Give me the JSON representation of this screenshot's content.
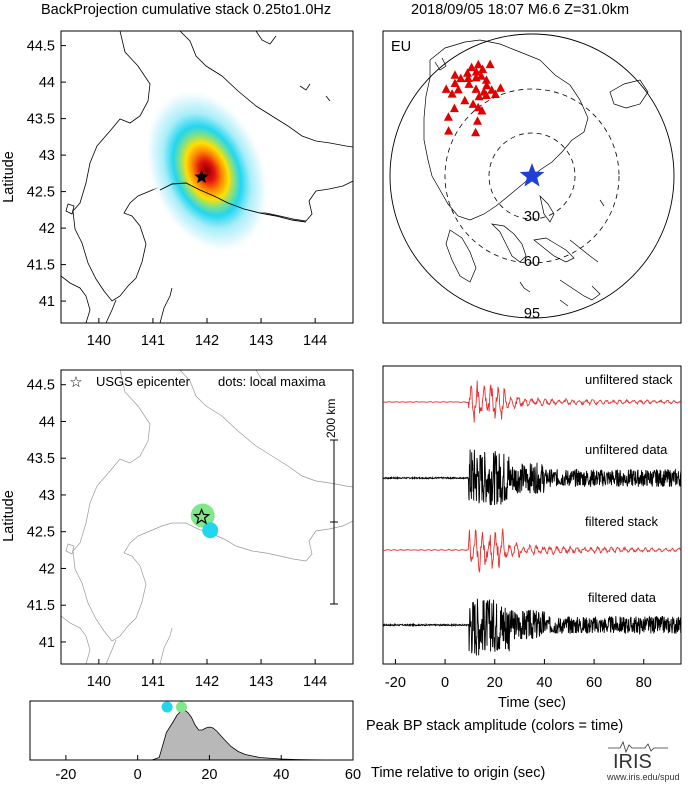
{
  "header": {
    "left_title": "BackProjection cumulative stack 0.25to1.0Hz",
    "right_title": "2018/09/05 18:07   M6.6  Z=31.0km"
  },
  "colors": {
    "stack_trace": "#e53030",
    "data_trace": "#000000",
    "station_marker": "#e00000",
    "epicenter_marker": "#1f3fd8",
    "early_dot": "#22d6f0",
    "late_dot": "#7ee88a",
    "amplitude_fill": "#b8b8b8"
  },
  "chart_data": [
    {
      "type": "heatmap",
      "xlabel": "",
      "ylabel": "Latitude",
      "xlim": [
        139.3,
        144.7
      ],
      "ylim": [
        40.7,
        44.7
      ],
      "x_ticks": [
        "140",
        "141",
        "142",
        "143",
        "144"
      ],
      "y_ticks": [
        "41",
        "41.5",
        "42",
        "42.5",
        "43",
        "43.5",
        "44",
        "44.5"
      ],
      "peak": {
        "lon": 141.92,
        "lat": 42.72
      },
      "epicenter": {
        "lon": 141.9,
        "lat": 42.7,
        "marker": "star"
      }
    },
    {
      "type": "scatter",
      "label": "EU",
      "ring_labels": [
        "30",
        "60",
        "95"
      ],
      "epicenter_marker": "star",
      "station_marker": "triangle",
      "stations": [
        {
          "lon": 4,
          "lat": 52
        },
        {
          "lon": 8,
          "lat": 50
        },
        {
          "lon": 10,
          "lat": 54
        },
        {
          "lon": 13,
          "lat": 52
        },
        {
          "lon": 15,
          "lat": 48
        },
        {
          "lon": 20,
          "lat": 50
        },
        {
          "lon": 24,
          "lat": 55
        },
        {
          "lon": 26,
          "lat": 60
        },
        {
          "lon": 30,
          "lat": 62
        },
        {
          "lon": 22,
          "lat": 64
        },
        {
          "lon": 18,
          "lat": 60
        },
        {
          "lon": 12,
          "lat": 58
        },
        {
          "lon": 6,
          "lat": 46
        },
        {
          "lon": 2,
          "lat": 48
        },
        {
          "lon": -3,
          "lat": 53
        },
        {
          "lon": 25,
          "lat": 45
        },
        {
          "lon": 28,
          "lat": 42
        },
        {
          "lon": 35,
          "lat": 50
        },
        {
          "lon": 40,
          "lat": 55
        },
        {
          "lon": 45,
          "lat": 58
        },
        {
          "lon": 50,
          "lat": 60
        },
        {
          "lon": 16,
          "lat": 44
        },
        {
          "lon": 11,
          "lat": 46
        },
        {
          "lon": 20,
          "lat": 42
        },
        {
          "lon": 32,
          "lat": 58
        },
        {
          "lon": 27,
          "lat": 67
        },
        {
          "lon": 15,
          "lat": 68
        },
        {
          "lon": 60,
          "lat": 56
        },
        {
          "lon": 70,
          "lat": 52
        },
        {
          "lon": 40,
          "lat": 44
        },
        {
          "lon": 45,
          "lat": 40
        },
        {
          "lon": 55,
          "lat": 38
        },
        {
          "lon": 24,
          "lat": 38
        },
        {
          "lon": 14,
          "lat": 40
        }
      ]
    },
    {
      "type": "scatter",
      "xlabel": "",
      "ylabel": "Latitude",
      "xlim": [
        139.3,
        144.7
      ],
      "ylim": [
        40.7,
        44.7
      ],
      "x_ticks": [
        "140",
        "141",
        "142",
        "143",
        "144"
      ],
      "y_ticks": [
        "41",
        "41.5",
        "42",
        "42.5",
        "43",
        "43.5",
        "44",
        "44.5"
      ],
      "legend": "USGS epicenter",
      "note": "dots: local maxima",
      "scale_bar": "200 km",
      "epicenter": {
        "lon": 141.9,
        "lat": 42.7
      },
      "points": [
        {
          "lon": 141.92,
          "lat": 42.72,
          "color": "#7ee88a",
          "size": 12
        },
        {
          "lon": 142.06,
          "lat": 42.52,
          "color": "#22d6f0",
          "size": 8
        }
      ]
    },
    {
      "type": "line",
      "xlabel": "Time (sec)",
      "xlim": [
        -25,
        95
      ],
      "x_ticks": [
        "-20",
        "0",
        "20",
        "40",
        "60",
        "80"
      ],
      "series": [
        {
          "name": "unfiltered stack"
        },
        {
          "name": "unfiltered data"
        },
        {
          "name": "filtered stack"
        },
        {
          "name": "filtered data"
        }
      ]
    },
    {
      "type": "area",
      "title": "Peak BP stack amplitude (colors = time)",
      "xlabel": "Time relative to origin (sec)",
      "xlim": [
        -30,
        60
      ],
      "x_ticks": [
        "-20",
        "0",
        "20",
        "40",
        "60"
      ],
      "x": [
        -30,
        4,
        6,
        8,
        10,
        11,
        12,
        13,
        14,
        15,
        16,
        17,
        18,
        19,
        20,
        21,
        22,
        24,
        26,
        28,
        30,
        32,
        34,
        36,
        38,
        40,
        42,
        44,
        48,
        52,
        55
      ],
      "values": [
        0,
        0,
        0.05,
        0.55,
        0.78,
        0.9,
        0.97,
        1.0,
        0.95,
        0.85,
        0.7,
        0.6,
        0.6,
        0.64,
        0.66,
        0.64,
        0.58,
        0.42,
        0.27,
        0.17,
        0.11,
        0.08,
        0.05,
        0.04,
        0.03,
        0.02,
        0.015,
        0.01,
        0.005,
        0.002,
        0
      ],
      "dots": [
        {
          "x": 8.2,
          "color": "#22d6f0"
        },
        {
          "x": 12.2,
          "color": "#7ee88a"
        }
      ]
    }
  ],
  "footer": {
    "logo": "IRIS",
    "logo_url": "www.iris.edu/spud"
  }
}
